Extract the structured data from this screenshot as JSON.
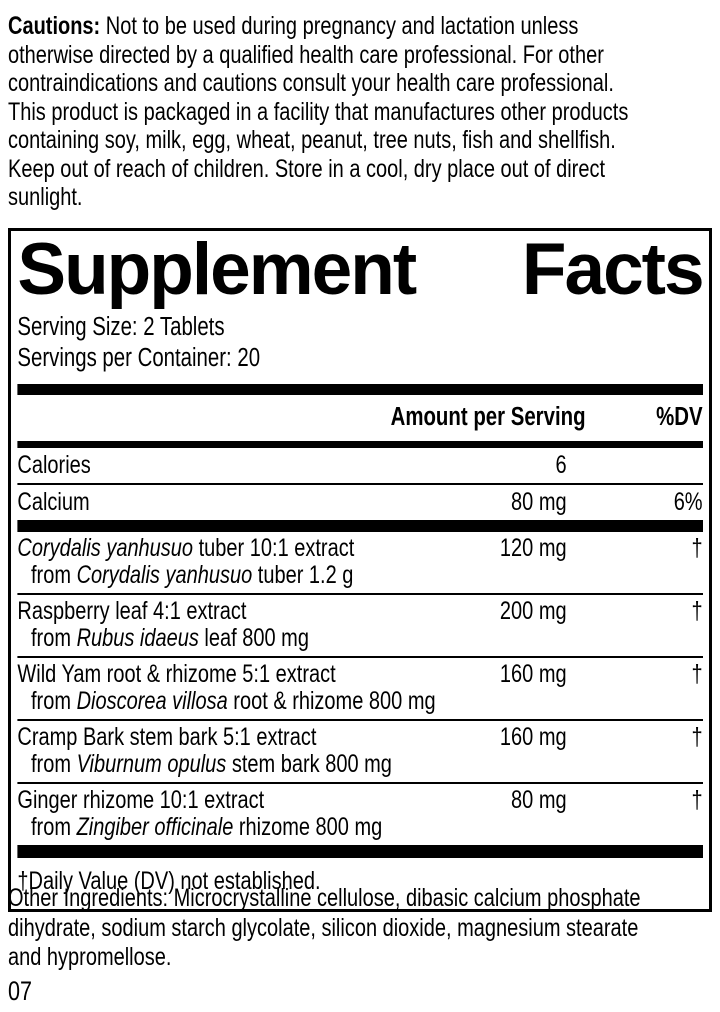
{
  "colors": {
    "text": "#000000",
    "background": "#ffffff"
  },
  "cautions": {
    "label": "Cautions:",
    "lines": [
      " Not to be used during pregnancy and lactation unless",
      "otherwise directed by a qualified health care professional. For other",
      "contraindications and cautions consult your health care professional.",
      "This product is packaged in a facility that manufactures other products",
      "containing soy, milk, egg, wheat, peanut, tree nuts, fish and shellfish.",
      "Keep out of reach of children. Store in a cool, dry place out of direct",
      "sunlight."
    ]
  },
  "panel": {
    "title": "Supplement Facts",
    "title_words": [
      "Supplement",
      "Facts"
    ],
    "serving_size": "Serving Size: 2 Tablets",
    "servings_per_container": "Servings per Container: 20",
    "columns": {
      "amount": "Amount per Serving",
      "dv": "%DV"
    },
    "rows": [
      {
        "name": "Calories",
        "amount": "6",
        "dv": ""
      },
      {
        "name": "Calcium",
        "amount": "80 mg",
        "dv": "6%"
      },
      {
        "name": [
          {
            "t": "Corydalis yanhusuo",
            "i": true
          },
          {
            "t": " tuber 10:1 extract"
          }
        ],
        "sub": [
          {
            "t": "from "
          },
          {
            "t": "Corydalis yanhusuo",
            "i": true
          },
          {
            "t": " tuber 1.2 g"
          }
        ],
        "amount": "120 mg",
        "dv": "†"
      },
      {
        "name": [
          {
            "t": "Raspberry leaf 4:1 extract"
          }
        ],
        "sub": [
          {
            "t": "from "
          },
          {
            "t": "Rubus idaeus",
            "i": true
          },
          {
            "t": " leaf 800 mg"
          }
        ],
        "amount": "200 mg",
        "dv": "†"
      },
      {
        "name": [
          {
            "t": "Wild Yam root & rhizome 5:1 extract"
          }
        ],
        "sub": [
          {
            "t": "from "
          },
          {
            "t": "Dioscorea villosa",
            "i": true
          },
          {
            "t": " root & rhizome 800 mg"
          }
        ],
        "amount": "160 mg",
        "dv": "†"
      },
      {
        "name": [
          {
            "t": "Cramp Bark stem bark 5:1 extract"
          }
        ],
        "sub": [
          {
            "t": "from "
          },
          {
            "t": "Viburnum opulus",
            "i": true
          },
          {
            "t": " stem bark 800 mg"
          }
        ],
        "amount": "160 mg",
        "dv": "†"
      },
      {
        "name": [
          {
            "t": "Ginger rhizome 10:1 extract"
          }
        ],
        "sub": [
          {
            "t": "from "
          },
          {
            "t": "Zingiber officinale",
            "i": true
          },
          {
            "t": " rhizome 800 mg"
          }
        ],
        "amount": "80 mg",
        "dv": "†"
      }
    ],
    "footnote": "†Daily Value (DV) not established."
  },
  "other_ingredients": {
    "lines": [
      "Other Ingredients: Microcrystalline cellulose, dibasic calcium phosphate",
      "dihydrate, sodium starch glycolate, silicon dioxide, magnesium stearate",
      "and hypromellose."
    ]
  },
  "page_code": "07"
}
